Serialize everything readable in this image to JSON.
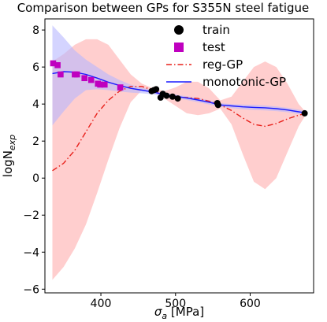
{
  "chart_data": {
    "type": "line",
    "title": "Comparison between GPs for S355N steel fatigue",
    "xlabel_main": "σ",
    "xlabel_sub": "a",
    "xlabel_unit": " [MPa]",
    "ylabel_main": "logN",
    "ylabel_sub": "exp",
    "xlim": [
      325,
      685
    ],
    "ylim": [
      -6.2,
      8.6
    ],
    "x_ticks": [
      400,
      500,
      600
    ],
    "y_ticks": [
      -6,
      -4,
      -2,
      0,
      2,
      4,
      6,
      8
    ],
    "grid": false,
    "legend_placement": "top-right",
    "legend": [
      {
        "label": "train",
        "marker": "circle"
      },
      {
        "label": "test",
        "marker": "square"
      },
      {
        "label": "reg-GP",
        "style": "dash-dot"
      },
      {
        "label": "monotonic-GP",
        "style": "solid"
      }
    ],
    "colors": {
      "train": "#000000",
      "test": "#bf00bf",
      "reg_gp_line": "#e8201a",
      "reg_gp_band": "#ffc9c9",
      "mono_gp_line": "#1a1aff",
      "mono_gp_band": "#b8b8ff"
    },
    "series": [
      {
        "name": "train",
        "kind": "scatter",
        "points": [
          [
            468,
            4.7
          ],
          [
            471,
            4.75
          ],
          [
            474,
            4.8
          ],
          [
            480,
            4.35
          ],
          [
            483,
            4.55
          ],
          [
            488,
            4.45
          ],
          [
            496,
            4.4
          ],
          [
            503,
            4.3
          ],
          [
            556,
            4.05
          ],
          [
            557,
            3.95
          ],
          [
            673,
            3.5
          ]
        ]
      },
      {
        "name": "test",
        "kind": "scatter",
        "points": [
          [
            336,
            6.2
          ],
          [
            342,
            6.1
          ],
          [
            346,
            5.6
          ],
          [
            365,
            5.6
          ],
          [
            368,
            5.6
          ],
          [
            378,
            5.4
          ],
          [
            387,
            5.3
          ],
          [
            396,
            5.1
          ],
          [
            399,
            5.05
          ],
          [
            405,
            5.05
          ],
          [
            426,
            4.9
          ]
        ]
      },
      {
        "name": "reg-GP",
        "kind": "line",
        "x": [
          335,
          350,
          365,
          380,
          395,
          410,
          425,
          440,
          455,
          470,
          485,
          500,
          515,
          530,
          545,
          560,
          575,
          590,
          605,
          620,
          635,
          650,
          665,
          675
        ],
        "mean": [
          0.4,
          0.8,
          1.5,
          2.5,
          3.5,
          4.2,
          4.7,
          4.95,
          4.95,
          4.75,
          4.5,
          4.38,
          4.35,
          4.3,
          4.15,
          3.95,
          3.65,
          3.25,
          2.9,
          2.8,
          2.95,
          3.2,
          3.4,
          3.5
        ],
        "upper": [
          6.3,
          6.7,
          7.2,
          7.5,
          7.5,
          7.2,
          6.4,
          5.6,
          5.1,
          4.85,
          4.7,
          4.9,
          5.2,
          5.2,
          4.85,
          4.2,
          4.4,
          5.2,
          6.0,
          6.3,
          6.0,
          5.1,
          4.0,
          3.55
        ],
        "lower": [
          -5.5,
          -4.8,
          -3.8,
          -2.5,
          -0.8,
          1.0,
          2.7,
          4.1,
          4.75,
          4.65,
          4.3,
          3.9,
          3.5,
          3.4,
          3.5,
          3.75,
          2.9,
          1.3,
          -0.2,
          -0.6,
          0.0,
          1.4,
          2.8,
          3.45
        ]
      },
      {
        "name": "monotonic-GP",
        "kind": "line",
        "x": [
          335,
          350,
          365,
          380,
          395,
          410,
          425,
          440,
          455,
          470,
          485,
          500,
          515,
          530,
          545,
          560,
          575,
          590,
          605,
          620,
          635,
          650,
          665,
          675
        ],
        "mean": [
          5.65,
          5.75,
          5.72,
          5.6,
          5.4,
          5.18,
          5.0,
          4.85,
          4.75,
          4.65,
          4.52,
          4.42,
          4.33,
          4.22,
          4.1,
          3.95,
          3.9,
          3.85,
          3.82,
          3.8,
          3.75,
          3.68,
          3.58,
          3.52
        ],
        "upper": [
          8.25,
          7.6,
          6.9,
          6.4,
          6.0,
          5.6,
          5.3,
          5.05,
          4.88,
          4.75,
          4.6,
          4.5,
          4.42,
          4.32,
          4.2,
          4.05,
          4.0,
          3.97,
          3.95,
          3.92,
          3.87,
          3.8,
          3.7,
          3.6
        ],
        "lower": [
          2.85,
          3.6,
          4.3,
          4.75,
          4.8,
          4.75,
          4.68,
          4.62,
          4.58,
          4.52,
          4.42,
          4.32,
          4.22,
          4.1,
          3.98,
          3.85,
          3.78,
          3.72,
          3.68,
          3.66,
          3.62,
          3.56,
          3.46,
          3.42
        ]
      }
    ]
  }
}
